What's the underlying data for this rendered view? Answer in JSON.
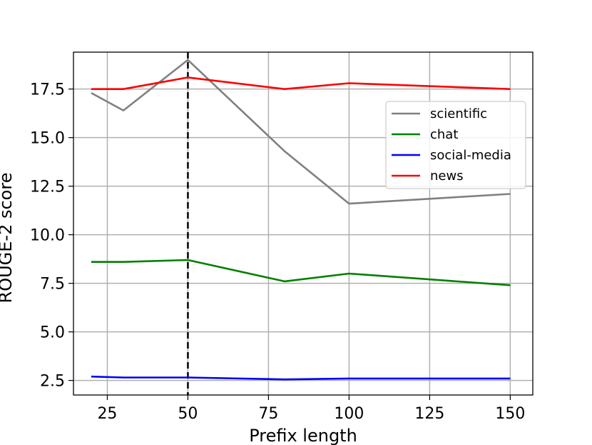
{
  "chart_data": {
    "type": "line",
    "title": "",
    "xlabel": "Prefix length",
    "ylabel": "ROUGE-2 score",
    "x": [
      20,
      30,
      50,
      80,
      100,
      150
    ],
    "xlim": [
      14.5,
      157
    ],
    "ylim": [
      1.75,
      19.4
    ],
    "xticks": [
      25,
      50,
      75,
      100,
      125,
      150
    ],
    "xtick_labels": [
      "25",
      "50",
      "75",
      "100",
      "125",
      "150"
    ],
    "yticks": [
      2.5,
      5.0,
      7.5,
      10.0,
      12.5,
      15.0,
      17.5
    ],
    "ytick_labels": [
      "2.5",
      "5.0",
      "7.5",
      "10.0",
      "12.5",
      "15.0",
      "17.5"
    ],
    "grid": true,
    "legend_position": "upper-right",
    "vline": {
      "x": 50,
      "style": "dashed",
      "color": "#000000"
    },
    "series": [
      {
        "name": "scientific",
        "color": "#808080",
        "values": [
          17.3,
          16.4,
          19.0,
          14.3,
          11.6,
          12.1
        ]
      },
      {
        "name": "chat",
        "color": "#008000",
        "values": [
          8.6,
          8.6,
          8.7,
          7.6,
          8.0,
          7.4
        ]
      },
      {
        "name": "social-media",
        "color": "#0000ff",
        "values": [
          2.7,
          2.65,
          2.65,
          2.55,
          2.6,
          2.6
        ]
      },
      {
        "name": "news",
        "color": "#ff0000",
        "values": [
          17.5,
          17.5,
          18.1,
          17.5,
          17.8,
          17.5
        ]
      }
    ]
  }
}
